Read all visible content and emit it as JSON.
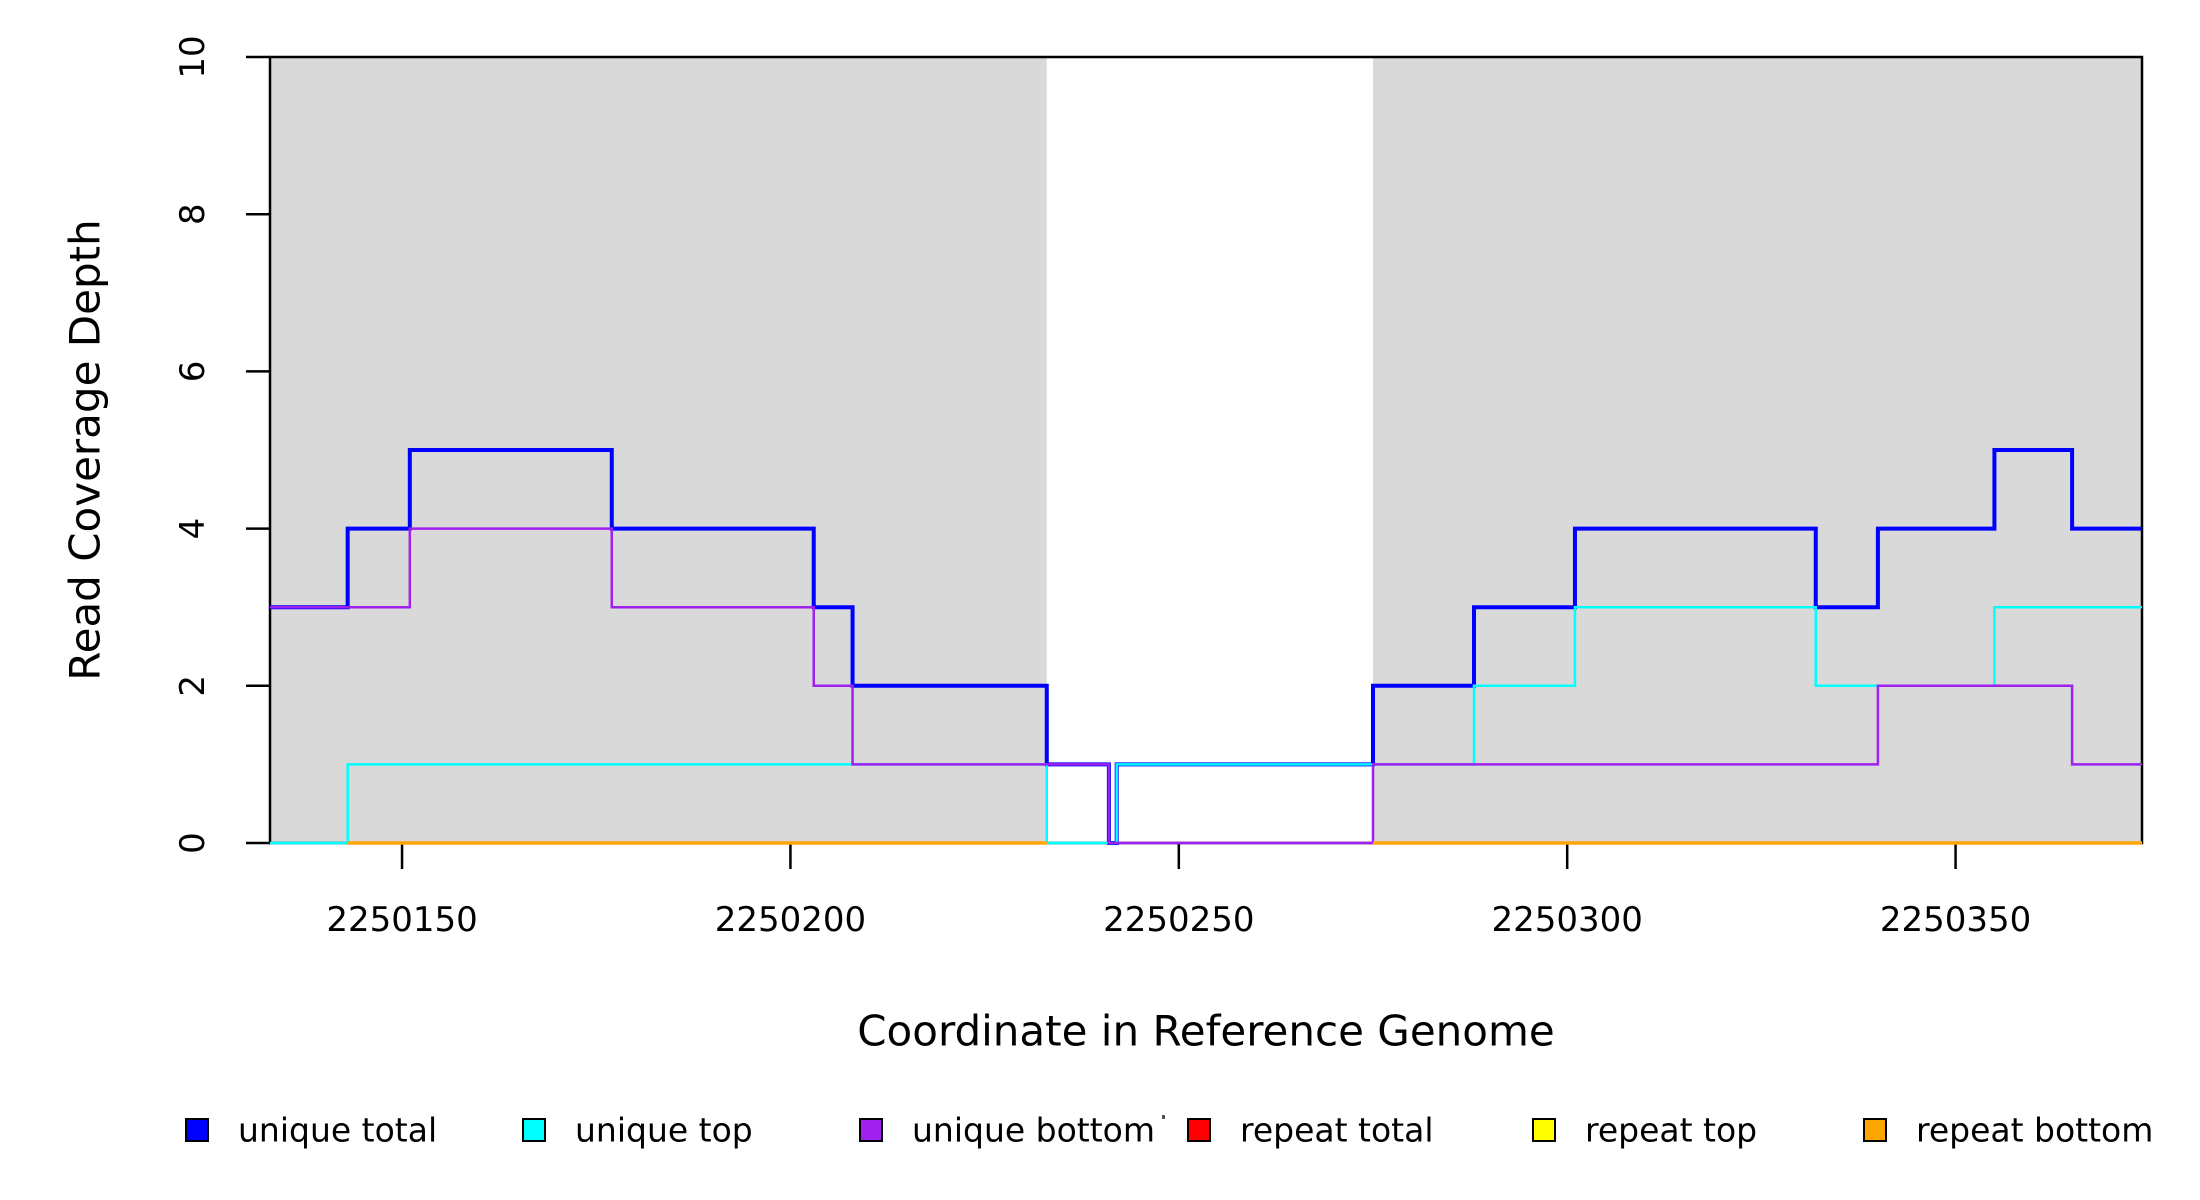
{
  "chart_data": {
    "type": "line",
    "subtype": "step",
    "title": "",
    "xlabel": "Coordinate in Reference Genome",
    "ylabel": "Read Coverage Depth",
    "xlim": [
      2250133,
      2250374
    ],
    "ylim": [
      0,
      10
    ],
    "x_ticks": [
      2250150,
      2250200,
      2250250,
      2250300,
      2250350
    ],
    "x_tick_labels": [
      "2250150",
      "2250200",
      "2250250",
      "2250300",
      "2250350"
    ],
    "y_ticks": [
      0,
      2,
      4,
      6,
      8,
      10
    ],
    "y_tick_labels": [
      "0",
      "2",
      "4",
      "6",
      "8",
      "10"
    ],
    "grid": false,
    "frame_color": "#000000",
    "background_color": "#ffffff",
    "shade_color": "#d9d9d9",
    "shaded_regions": [
      {
        "from": 2250133,
        "to": 2250233
      },
      {
        "from": 2250275,
        "to": 2250374
      }
    ],
    "series": [
      {
        "name": "unique total",
        "color": "#0000ff",
        "line_width": 4,
        "segments": [
          {
            "points": [
              [
                2250133,
                3
              ],
              [
                2250143,
                4
              ],
              [
                2250151,
                5
              ],
              [
                2250177,
                4
              ],
              [
                2250203,
                3
              ],
              [
                2250208,
                2
              ],
              [
                2250233,
                1
              ],
              [
                2250241,
                0
              ],
              [
                2250242,
                1
              ],
              [
                2250275,
                2
              ],
              [
                2250288,
                3
              ],
              [
                2250301,
                4
              ],
              [
                2250332,
                3
              ],
              [
                2250340,
                4
              ],
              [
                2250355,
                5
              ],
              [
                2250365,
                4
              ]
            ],
            "end": 2250374
          }
        ]
      },
      {
        "name": "unique top",
        "color": "#00ffff",
        "line_width": 2.5,
        "segments": [
          {
            "points": [
              [
                2250133,
                0
              ],
              [
                2250143,
                1
              ],
              [
                2250233,
                0
              ],
              [
                2250242,
                1
              ],
              [
                2250288,
                2
              ],
              [
                2250301,
                3
              ],
              [
                2250332,
                2
              ],
              [
                2250355,
                3
              ]
            ],
            "end": 2250374
          }
        ]
      },
      {
        "name": "unique bottom",
        "color": "#a020f0",
        "line_width": 2.5,
        "segments": [
          {
            "points": [
              [
                2250133,
                3
              ],
              [
                2250151,
                4
              ],
              [
                2250177,
                3
              ],
              [
                2250203,
                2
              ],
              [
                2250208,
                1
              ],
              [
                2250241,
                0
              ],
              [
                2250275,
                1
              ],
              [
                2250340,
                2
              ],
              [
                2250365,
                1
              ]
            ],
            "end": 2250374
          }
        ]
      },
      {
        "name": "repeat total",
        "color": "#ff0000",
        "line_width": 2.5,
        "segments": [
          {
            "points": [
              [
                2250143,
                0
              ]
            ],
            "end": 2250233
          },
          {
            "points": [
              [
                2250275,
                0
              ]
            ],
            "end": 2250374
          }
        ]
      },
      {
        "name": "repeat top",
        "color": "#ffff00",
        "line_width": 2.5,
        "segments": [
          {
            "points": [
              [
                2250143,
                0
              ]
            ],
            "end": 2250233
          },
          {
            "points": [
              [
                2250275,
                0
              ]
            ],
            "end": 2250374
          }
        ]
      },
      {
        "name": "repeat bottom",
        "color": "#ffa500",
        "line_width": 3.5,
        "segments": [
          {
            "points": [
              [
                2250143,
                0
              ]
            ],
            "end": 2250233
          },
          {
            "points": [
              [
                2250275,
                0
              ]
            ],
            "end": 2250374
          }
        ]
      }
    ],
    "legend": {
      "position": "bottom",
      "entries": [
        {
          "label": "unique total",
          "color": "#0000ff"
        },
        {
          "label": "unique top",
          "color": "#00ffff"
        },
        {
          "label": "unique bottom",
          "color": "#a020f0"
        },
        {
          "label": "repeat total",
          "color": "#ff0000"
        },
        {
          "label": "repeat top",
          "color": "#ffff00"
        },
        {
          "label": "repeat bottom",
          "color": "#ffa500"
        }
      ]
    }
  }
}
